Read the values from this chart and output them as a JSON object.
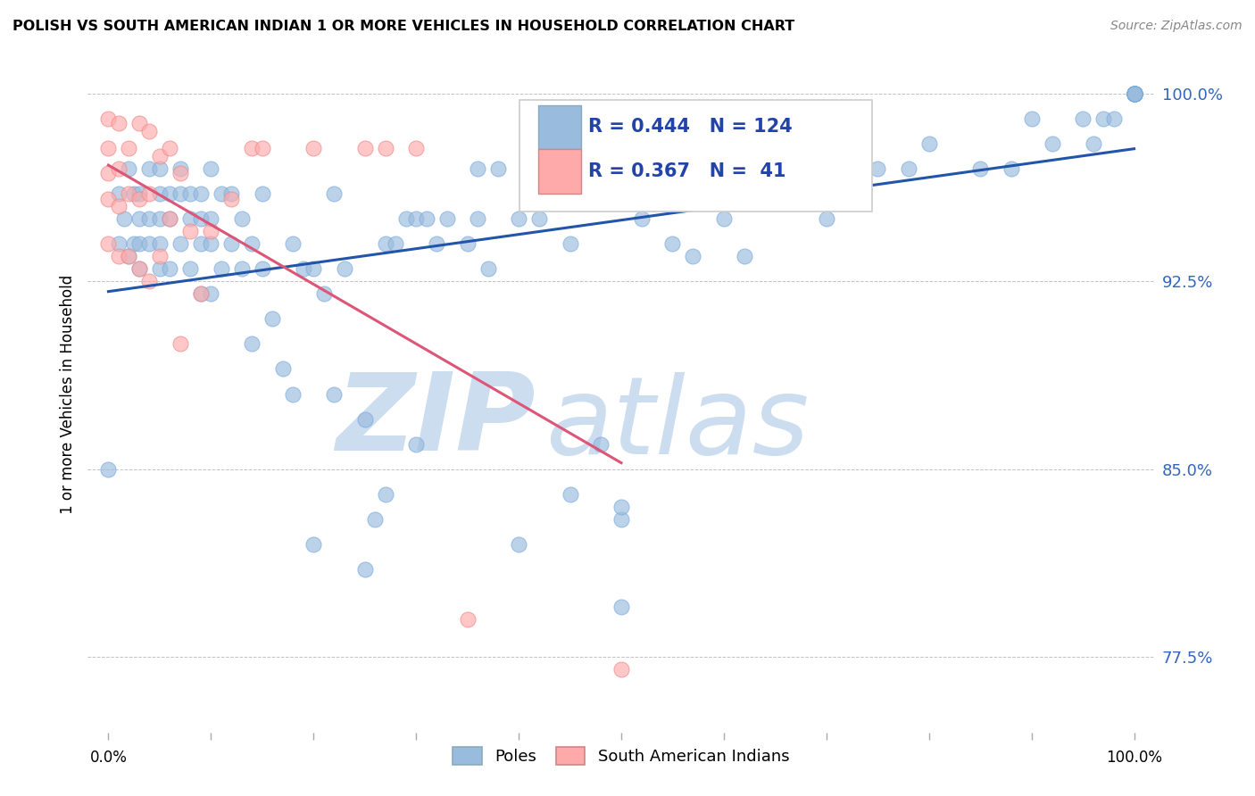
{
  "title": "POLISH VS SOUTH AMERICAN INDIAN 1 OR MORE VEHICLES IN HOUSEHOLD CORRELATION CHART",
  "source": "Source: ZipAtlas.com",
  "ylabel": "1 or more Vehicles in Household",
  "ytick_labels": [
    "100.0%",
    "92.5%",
    "85.0%",
    "77.5%"
  ],
  "ytick_values": [
    1.0,
    0.925,
    0.85,
    0.775
  ],
  "xlim": [
    -0.02,
    1.02
  ],
  "ylim": [
    0.745,
    1.015
  ],
  "blue_R": 0.444,
  "blue_N": 124,
  "pink_R": 0.367,
  "pink_N": 41,
  "legend_labels": [
    "Poles",
    "South American Indians"
  ],
  "blue_color": "#99BBDD",
  "pink_color": "#FFAAAA",
  "line_blue": "#2255AA",
  "line_pink": "#DD5577",
  "watermark_zip": "ZIP",
  "watermark_atlas": "atlas",
  "watermark_color": "#DDEEFF",
  "blue_scatter_x": [
    0.0,
    0.01,
    0.01,
    0.015,
    0.02,
    0.02,
    0.025,
    0.025,
    0.03,
    0.03,
    0.03,
    0.03,
    0.04,
    0.04,
    0.04,
    0.05,
    0.05,
    0.05,
    0.05,
    0.05,
    0.06,
    0.06,
    0.06,
    0.07,
    0.07,
    0.07,
    0.08,
    0.08,
    0.08,
    0.09,
    0.09,
    0.09,
    0.09,
    0.1,
    0.1,
    0.1,
    0.1,
    0.11,
    0.11,
    0.12,
    0.12,
    0.13,
    0.13,
    0.14,
    0.14,
    0.15,
    0.15,
    0.16,
    0.17,
    0.18,
    0.18,
    0.19,
    0.2,
    0.2,
    0.21,
    0.22,
    0.22,
    0.23,
    0.25,
    0.25,
    0.26,
    0.27,
    0.27,
    0.28,
    0.29,
    0.3,
    0.3,
    0.31,
    0.32,
    0.33,
    0.35,
    0.36,
    0.36,
    0.37,
    0.38,
    0.4,
    0.4,
    0.42,
    0.43,
    0.45,
    0.45,
    0.48,
    0.5,
    0.5,
    0.5,
    0.52,
    0.55,
    0.57,
    0.6,
    0.62,
    0.65,
    0.68,
    0.7,
    0.7,
    0.72,
    0.75,
    0.78,
    0.8,
    0.85,
    0.88,
    0.9,
    0.92,
    0.95,
    0.96,
    0.97,
    0.98,
    1.0,
    1.0,
    1.0,
    1.0,
    1.0,
    1.0,
    1.0,
    1.0,
    1.0,
    1.0,
    1.0,
    1.0,
    1.0,
    1.0,
    1.0,
    1.0
  ],
  "blue_scatter_y": [
    0.85,
    0.94,
    0.96,
    0.95,
    0.935,
    0.97,
    0.94,
    0.96,
    0.93,
    0.94,
    0.95,
    0.96,
    0.94,
    0.95,
    0.97,
    0.93,
    0.94,
    0.95,
    0.96,
    0.97,
    0.93,
    0.95,
    0.96,
    0.94,
    0.96,
    0.97,
    0.93,
    0.95,
    0.96,
    0.92,
    0.94,
    0.95,
    0.96,
    0.92,
    0.94,
    0.95,
    0.97,
    0.93,
    0.96,
    0.94,
    0.96,
    0.93,
    0.95,
    0.9,
    0.94,
    0.93,
    0.96,
    0.91,
    0.89,
    0.88,
    0.94,
    0.93,
    0.82,
    0.93,
    0.92,
    0.88,
    0.96,
    0.93,
    0.81,
    0.87,
    0.83,
    0.84,
    0.94,
    0.94,
    0.95,
    0.86,
    0.95,
    0.95,
    0.94,
    0.95,
    0.94,
    0.95,
    0.97,
    0.93,
    0.97,
    0.82,
    0.95,
    0.95,
    0.96,
    0.94,
    0.84,
    0.86,
    0.795,
    0.83,
    0.835,
    0.95,
    0.94,
    0.935,
    0.95,
    0.935,
    0.96,
    0.96,
    0.95,
    0.97,
    0.96,
    0.97,
    0.97,
    0.98,
    0.97,
    0.97,
    0.99,
    0.98,
    0.99,
    0.98,
    0.99,
    0.99,
    1.0,
    1.0,
    1.0,
    1.0,
    1.0,
    1.0,
    1.0,
    1.0,
    1.0,
    1.0,
    1.0,
    1.0,
    1.0,
    1.0,
    1.0,
    1.0
  ],
  "pink_scatter_x": [
    0.0,
    0.0,
    0.0,
    0.0,
    0.0,
    0.01,
    0.01,
    0.01,
    0.01,
    0.02,
    0.02,
    0.02,
    0.03,
    0.03,
    0.03,
    0.04,
    0.04,
    0.04,
    0.05,
    0.05,
    0.06,
    0.06,
    0.07,
    0.07,
    0.08,
    0.09,
    0.1,
    0.12,
    0.14,
    0.15,
    0.2,
    0.25,
    0.27,
    0.3,
    0.35,
    0.5
  ],
  "pink_scatter_y": [
    0.94,
    0.958,
    0.968,
    0.978,
    0.99,
    0.935,
    0.955,
    0.97,
    0.988,
    0.935,
    0.96,
    0.978,
    0.93,
    0.958,
    0.988,
    0.925,
    0.96,
    0.985,
    0.935,
    0.975,
    0.95,
    0.978,
    0.9,
    0.968,
    0.945,
    0.92,
    0.945,
    0.958,
    0.978,
    0.978,
    0.978,
    0.978,
    0.978,
    0.978,
    0.79,
    0.77
  ]
}
